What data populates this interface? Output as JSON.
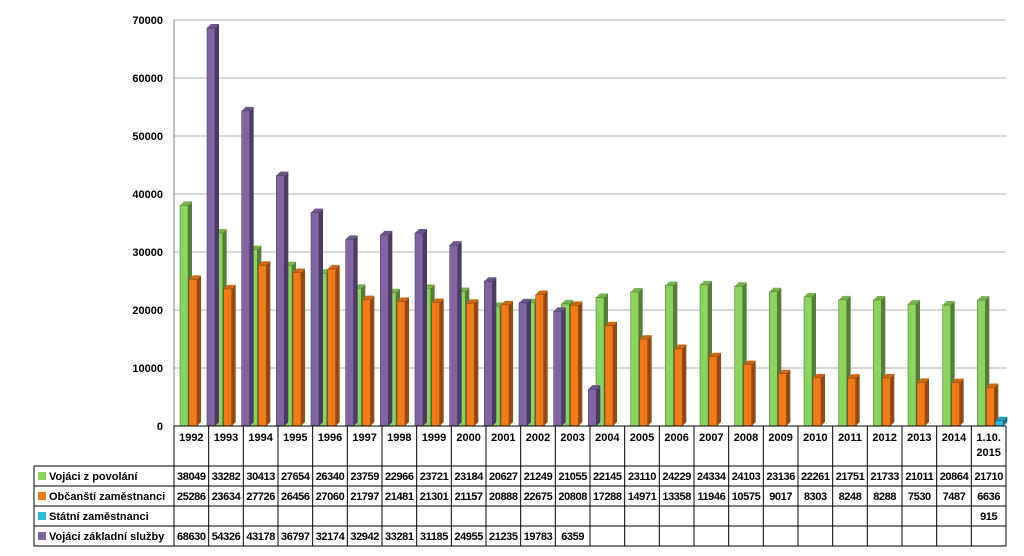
{
  "chart_data": {
    "type": "bar",
    "ylim": [
      0,
      70000
    ],
    "yticks": [
      "0",
      "10000",
      "20000",
      "30000",
      "40000",
      "50000",
      "60000",
      "70000"
    ],
    "grid": true,
    "legend_placement": "data-table-left",
    "categories": [
      "1992",
      "1993",
      "1994",
      "1995",
      "1996",
      "1997",
      "1998",
      "1999",
      "2000",
      "2001",
      "2002",
      "2003",
      "2004",
      "2005",
      "2006",
      "2007",
      "2008",
      "2009",
      "2010",
      "2011",
      "2012",
      "2013",
      "2014",
      "1.10. 2015"
    ],
    "series": [
      {
        "name": "Vojáci z povolání",
        "color": "#8dd35f",
        "values": [
          38049,
          33282,
          30413,
          27654,
          26340,
          23759,
          22966,
          23721,
          23184,
          20627,
          21249,
          21055,
          22145,
          23110,
          24229,
          24334,
          24103,
          23136,
          22261,
          21751,
          21733,
          21011,
          20864,
          21710
        ]
      },
      {
        "name": "Občanští zaměstnanci",
        "color": "#f07b1b",
        "values": [
          25286,
          23634,
          27726,
          26456,
          27060,
          21797,
          21481,
          21301,
          21157,
          20888,
          22675,
          20808,
          17288,
          14971,
          13358,
          11946,
          10575,
          9017,
          8303,
          8248,
          8288,
          7530,
          7487,
          6636
        ]
      },
      {
        "name": "Státní zaměstnanci",
        "color": "#2db9d8",
        "values": [
          null,
          null,
          null,
          null,
          null,
          null,
          null,
          null,
          null,
          null,
          null,
          null,
          null,
          null,
          null,
          null,
          null,
          null,
          null,
          null,
          null,
          null,
          null,
          915
        ]
      },
      {
        "name": "Vojáci základní služby",
        "color": "#8064a2",
        "values": [
          68630,
          54326,
          43178,
          36797,
          32174,
          32942,
          33281,
          31185,
          24955,
          21235,
          19783,
          6359,
          null,
          null,
          null,
          null,
          null,
          null,
          null,
          null,
          null,
          null,
          null,
          null
        ]
      }
    ]
  }
}
